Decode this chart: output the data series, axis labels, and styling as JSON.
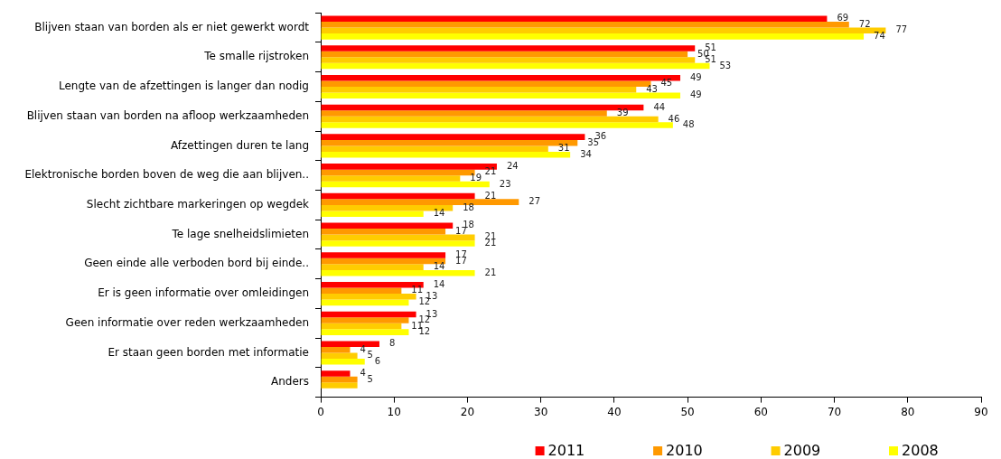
{
  "chart_data": {
    "type": "bar",
    "orientation": "horizontal",
    "categories": [
      "Blijven staan van borden als er niet gewerkt wordt",
      "Te smalle rijstroken",
      "Lengte van de afzettingen is langer dan nodig",
      "Blijven staan van borden na afloop werkzaamheden",
      "Afzettingen duren te lang",
      "Elektronische borden boven de weg die aan blijven..",
      "Slecht zichtbare markeringen op wegdek",
      "Te lage snelheidslimieten",
      "Geen einde alle verboden bord bij einde..",
      "Er is geen informatie over omleidingen",
      "Geen informatie over reden werkzaamheden",
      "Er staan geen borden met informatie",
      "Anders"
    ],
    "series": [
      {
        "name": "2011",
        "color": "#ff0000",
        "values": [
          69,
          51,
          49,
          44,
          36,
          24,
          21,
          18,
          17,
          14,
          13,
          8,
          4
        ],
        "value_labels": [
          "69",
          "51",
          "49",
          "44",
          "36",
          "24",
          "21",
          "18",
          "17",
          "14",
          "13",
          "8",
          "4"
        ]
      },
      {
        "name": "2010",
        "color": "#ff9900",
        "values": [
          72,
          50,
          45,
          39,
          35,
          21,
          27,
          17,
          17,
          11,
          12,
          4,
          5
        ],
        "value_labels": [
          "72",
          "50",
          "45",
          "39",
          "35",
          "21",
          "27",
          "17",
          "17",
          "11",
          "12",
          "4",
          "5"
        ]
      },
      {
        "name": "2009",
        "color": "#ffcc00",
        "values": [
          77,
          51,
          43,
          46,
          31,
          19,
          18,
          21,
          14,
          13,
          11,
          5,
          5
        ],
        "value_labels": [
          "77",
          "51",
          "43",
          "46",
          "31",
          "19",
          "18",
          "21",
          "14",
          "13",
          "11",
          "5",
          null
        ]
      },
      {
        "name": "2008",
        "color": "#ffff00",
        "values": [
          74,
          53,
          49,
          48,
          34,
          23,
          14,
          21,
          21,
          12,
          12,
          6,
          null
        ],
        "value_labels": [
          "74",
          "53",
          "49",
          "48",
          "34",
          "23",
          "14",
          "21",
          "21",
          "12",
          "12",
          "6",
          null
        ]
      }
    ],
    "xlim": [
      0,
      90
    ],
    "xticks": [
      0,
      10,
      20,
      30,
      40,
      50,
      60,
      70,
      80,
      90
    ],
    "grid": false,
    "legend": "bottom"
  }
}
